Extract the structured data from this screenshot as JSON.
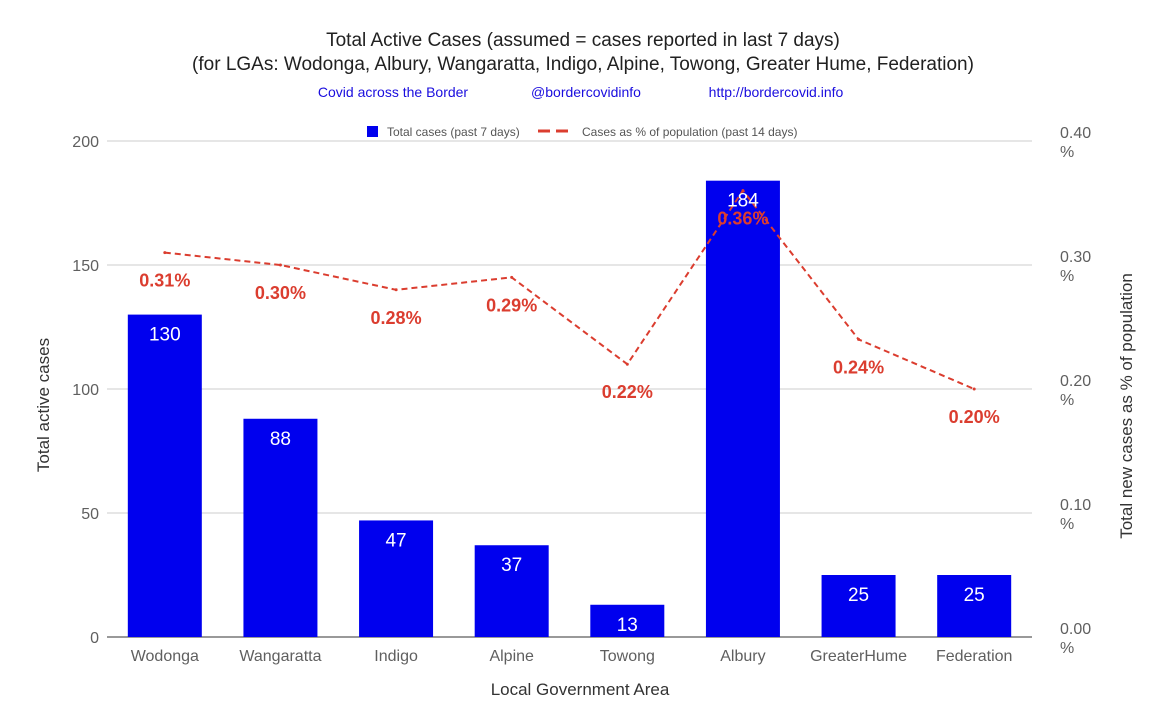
{
  "title": "Total Active Cases (assumed = cases reported in last 7 days)",
  "subtitle": "(for LGAs: Wodonga, Albury, Wangaratta, Indigo, Alpine, Towong, Greater Hume, Federation)",
  "credits": [
    "Covid across the Border",
    "@bordercovidinfo",
    "http://bordercovid.info"
  ],
  "colors": {
    "bar": "#0000ee",
    "line": "#db3d2f",
    "credit_text": "#1a0dde",
    "grid": "#cccccc"
  },
  "chart_data": {
    "type": "bar",
    "xlabel": "Local Government Area",
    "ylabel": "Total active cases",
    "y2label": "Total new cases as % of population",
    "categories": [
      "Wodonga",
      "Wangaratta",
      "Indigo",
      "Alpine",
      "Towong",
      "Albury",
      "GreaterHume",
      "Federation"
    ],
    "ylim": [
      0,
      200
    ],
    "yticks": [
      "0",
      "50",
      "100",
      "150",
      "200"
    ],
    "y2lim": [
      0,
      0.4
    ],
    "y2ticks": [
      {
        "value": 0.0,
        "label": "0.00",
        "unit": "%"
      },
      {
        "value": 0.1,
        "label": "0.10",
        "unit": "%"
      },
      {
        "value": 0.2,
        "label": "0.20",
        "unit": "%"
      },
      {
        "value": 0.3,
        "label": "0.30",
        "unit": "%"
      },
      {
        "value": 0.4,
        "label": "0.40",
        "unit": "%"
      }
    ],
    "grid": true,
    "legend_position": "top",
    "series": [
      {
        "name": "Total cases (past 7 days)",
        "kind": "bar",
        "axis": "left",
        "values": [
          130,
          88,
          47,
          37,
          13,
          184,
          25,
          25
        ],
        "labels": [
          "130",
          "88",
          "47",
          "37",
          "13",
          "184",
          "25",
          "25"
        ]
      },
      {
        "name": "Cases as % of population (past 14 days)",
        "kind": "line",
        "style": "dashed",
        "axis": "right",
        "values": [
          0.31,
          0.3,
          0.28,
          0.29,
          0.22,
          0.36,
          0.24,
          0.2
        ],
        "labels": [
          "0.31%",
          "0.30%",
          "0.28%",
          "0.29%",
          "0.22%",
          "0.36%",
          "0.24%",
          "0.20%"
        ]
      }
    ]
  }
}
